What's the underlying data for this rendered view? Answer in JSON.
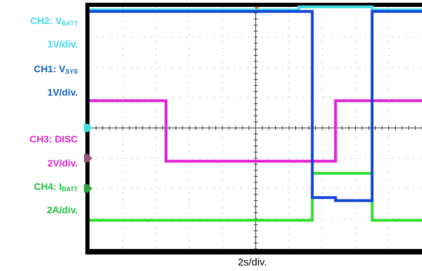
{
  "labels": {
    "ch2_name": "CH2: V",
    "ch2_sub": "BATT",
    "ch2_scale": "1V/div.",
    "ch1_name": "CH1: V",
    "ch1_sub": "SYS",
    "ch1_scale": "1V/div.",
    "ch3_name": "CH3: DISC",
    "ch3_scale": "2V/div.",
    "ch4_name": "CH4: I",
    "ch4_sub": "BATT",
    "ch4_scale": "2A/div.",
    "x_scale": "2s/div."
  },
  "colors": {
    "ch1": "#1040d8",
    "ch2": "#40e0e0",
    "ch3": "#e020d8",
    "ch4": "#30e030",
    "label_ch2": "#40d8e8",
    "label_ch1": "#1060c0",
    "label_ch3": "#e020c8",
    "label_ch4": "#20c040"
  },
  "chart_data": {
    "type": "line",
    "grid": true,
    "x_divisions": 10,
    "y_divisions": 8,
    "series": [
      {
        "channel": "CH2",
        "points": [
          [
            0,
            7.9
          ],
          [
            6.3,
            7.9
          ],
          [
            6.3,
            8.0
          ],
          [
            8.5,
            8.0
          ],
          [
            8.5,
            7.9
          ],
          [
            10,
            7.9
          ]
        ]
      },
      {
        "channel": "CH1",
        "points": [
          [
            0,
            7.85
          ],
          [
            6.7,
            7.85
          ],
          [
            6.7,
            1.7
          ],
          [
            7.4,
            1.7
          ],
          [
            7.4,
            1.6
          ],
          [
            8.5,
            1.6
          ],
          [
            8.5,
            7.85
          ],
          [
            10,
            7.85
          ]
        ]
      },
      {
        "channel": "CH3",
        "points": [
          [
            0,
            4.9
          ],
          [
            2.3,
            4.9
          ],
          [
            2.3,
            2.9
          ],
          [
            7.4,
            2.9
          ],
          [
            7.4,
            4.9
          ],
          [
            10,
            4.9
          ]
        ]
      },
      {
        "channel": "CH4",
        "points": [
          [
            0,
            0.95
          ],
          [
            6.7,
            0.95
          ],
          [
            6.7,
            2.5
          ],
          [
            8.5,
            2.5
          ],
          [
            8.5,
            0.95
          ],
          [
            10,
            0.95
          ]
        ]
      }
    ]
  }
}
